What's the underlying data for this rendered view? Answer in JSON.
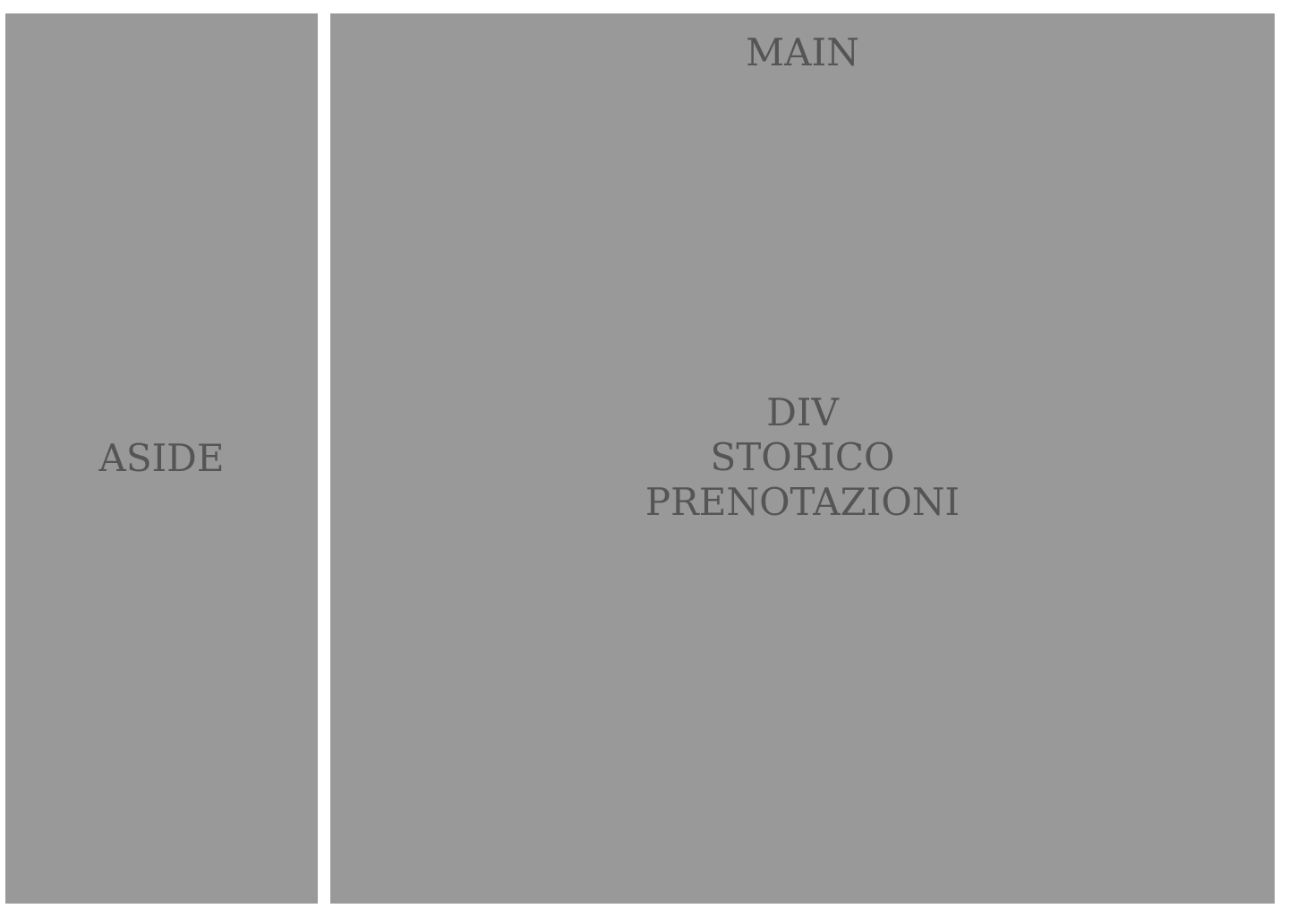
{
  "aside": {
    "label": "ASIDE"
  },
  "main": {
    "label": "MAIN",
    "div_block": {
      "lines": [
        "DIV",
        "STORICO",
        "PRENOTAZIONI"
      ]
    }
  },
  "colors": {
    "panel": "#999999",
    "text": "#555555",
    "background": "#ffffff"
  }
}
